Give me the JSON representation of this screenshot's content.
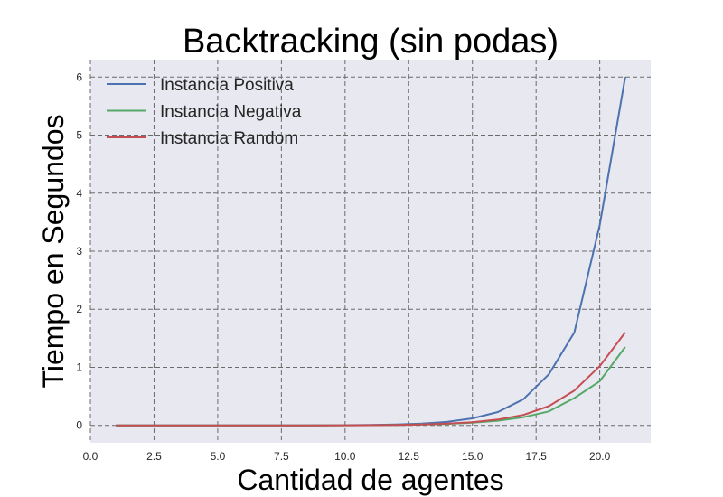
{
  "chart_data": {
    "type": "line",
    "title": "Backtracking (sin podas)",
    "xlabel": "Cantidad de agentes",
    "ylabel": "Tiempo en Segundos",
    "xlim": [
      0,
      22
    ],
    "ylim": [
      -0.3,
      6.3
    ],
    "x_ticks": [
      0.0,
      2.5,
      5.0,
      7.5,
      10.0,
      12.5,
      15.0,
      17.5,
      20.0
    ],
    "x_tick_labels": [
      "0.0",
      "2.5",
      "5.0",
      "7.5",
      "10.0",
      "12.5",
      "15.0",
      "17.5",
      "20.0"
    ],
    "y_ticks": [
      0,
      1,
      2,
      3,
      4,
      5,
      6
    ],
    "y_tick_labels": [
      "0",
      "1",
      "2",
      "3",
      "4",
      "5",
      "6"
    ],
    "grid": true,
    "legend_position": "top-left",
    "background": "#e8e8f0",
    "x": [
      1,
      2,
      3,
      4,
      5,
      6,
      7,
      8,
      9,
      10,
      11,
      12,
      13,
      14,
      15,
      16,
      17,
      18,
      19,
      20,
      21
    ],
    "series": [
      {
        "name": "Instancia Positiva",
        "color": "#4c72b0",
        "values": [
          0,
          0,
          0,
          0,
          0,
          0,
          0,
          0.001,
          0.002,
          0.004,
          0.008,
          0.015,
          0.03,
          0.06,
          0.12,
          0.23,
          0.45,
          0.88,
          1.6,
          3.45,
          6.0
        ]
      },
      {
        "name": "Instancia Negativa",
        "color": "#55a868",
        "values": [
          0,
          0,
          0,
          0,
          0,
          0,
          0,
          0,
          0.001,
          0.002,
          0.004,
          0.007,
          0.014,
          0.025,
          0.045,
          0.08,
          0.14,
          0.24,
          0.47,
          0.76,
          1.35
        ]
      },
      {
        "name": "Instancia Random",
        "color": "#c44e52",
        "values": [
          0,
          0,
          0,
          0,
          0,
          0,
          0,
          0,
          0.001,
          0.002,
          0.004,
          0.008,
          0.016,
          0.03,
          0.055,
          0.1,
          0.18,
          0.33,
          0.6,
          1.02,
          1.6
        ]
      }
    ]
  }
}
